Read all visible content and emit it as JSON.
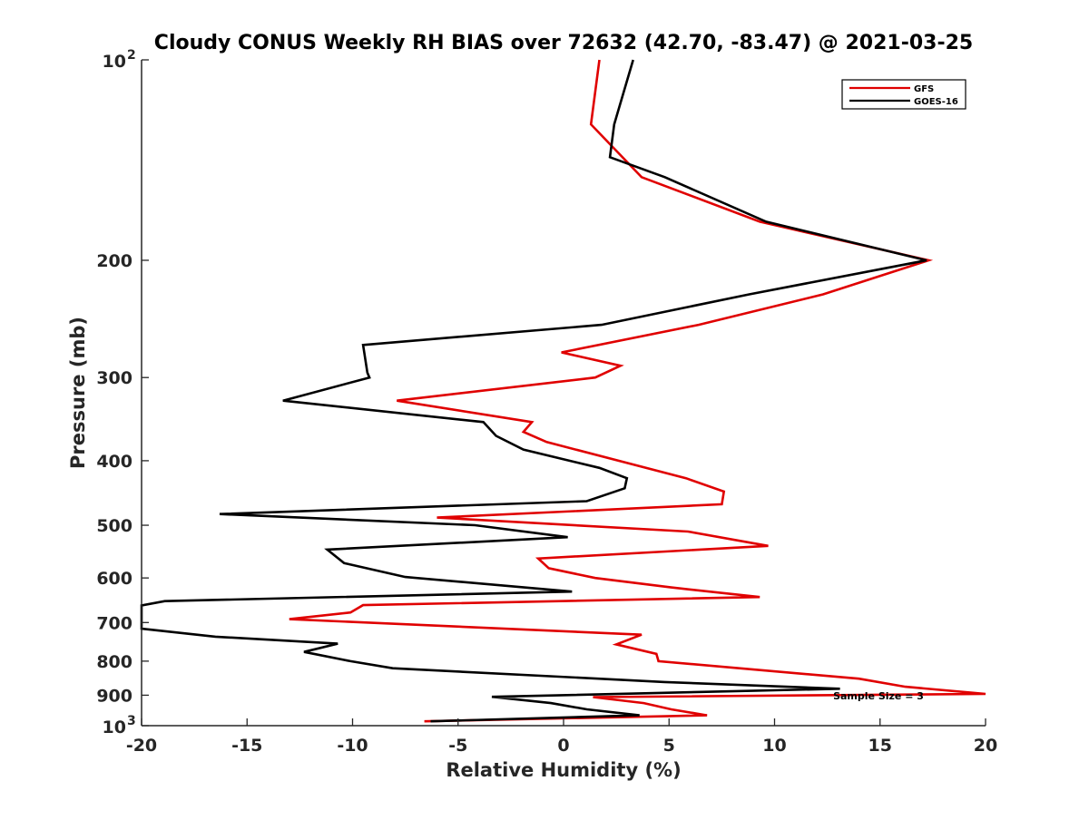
{
  "chart_data": {
    "type": "line",
    "title": "Cloudy CONUS Weekly RH BIAS over 72632 (42.70, -83.47) @ 2021-03-25",
    "xlabel": "Relative Humidity (%)",
    "ylabel": "Pressure (mb)",
    "xlim": [
      -20,
      20
    ],
    "ylim": [
      100,
      1000
    ],
    "y_scale": "log",
    "y_reversed": true,
    "x_ticks": [
      "-20",
      "-15",
      "-10",
      "-5",
      "0",
      "5",
      "10",
      "15",
      "20"
    ],
    "y_ticks": [
      {
        "value": 100,
        "base": "10",
        "exp": "2"
      },
      {
        "value": 200,
        "label": "200"
      },
      {
        "value": 300,
        "label": "300"
      },
      {
        "value": 400,
        "label": "400"
      },
      {
        "value": 500,
        "label": "500"
      },
      {
        "value": 600,
        "label": "600"
      },
      {
        "value": 700,
        "label": "700"
      },
      {
        "value": 800,
        "label": "800"
      },
      {
        "value": 900,
        "label": "900"
      },
      {
        "value": 1000,
        "base": "10",
        "exp": "3"
      }
    ],
    "legend_position": "top-right",
    "annotation": "Sample Size = 3",
    "series": [
      {
        "name": "GFS",
        "color": "#e00000",
        "points": [
          [
            1.7,
            100
          ],
          [
            1.3,
            125
          ],
          [
            3.7,
            150
          ],
          [
            9.3,
            175
          ],
          [
            17.3,
            200
          ],
          [
            12.3,
            225
          ],
          [
            6.4,
            250
          ],
          [
            -0.1,
            275
          ],
          [
            2.7,
            288
          ],
          [
            1.5,
            300
          ],
          [
            -7.9,
            325
          ],
          [
            -1.5,
            350
          ],
          [
            -1.9,
            362
          ],
          [
            -0.8,
            375
          ],
          [
            5.8,
            425
          ],
          [
            7.6,
            445
          ],
          [
            7.5,
            465
          ],
          [
            -6.0,
            487
          ],
          [
            5.9,
            511
          ],
          [
            9.7,
            537
          ],
          [
            -1.2,
            561
          ],
          [
            -0.7,
            580
          ],
          [
            1.5,
            600
          ],
          [
            5.1,
            620
          ],
          [
            9.3,
            641
          ],
          [
            -9.5,
            659
          ],
          [
            -10.1,
            676
          ],
          [
            -13.0,
            692
          ],
          [
            3.7,
            730
          ],
          [
            2.5,
            755
          ],
          [
            4.4,
            780
          ],
          [
            4.5,
            800
          ],
          [
            14.0,
            850
          ],
          [
            16.2,
            874
          ],
          [
            20.0,
            896
          ],
          [
            1.4,
            906
          ],
          [
            3.8,
            925
          ],
          [
            5.1,
            945
          ],
          [
            6.8,
            965
          ],
          [
            -6.6,
            985
          ]
        ]
      },
      {
        "name": "GOES-16",
        "color": "#000000",
        "points": [
          [
            3.3,
            100
          ],
          [
            2.4,
            125
          ],
          [
            2.2,
            140
          ],
          [
            4.8,
            150
          ],
          [
            9.6,
            175
          ],
          [
            17.2,
            200
          ],
          [
            8.8,
            225
          ],
          [
            1.8,
            250
          ],
          [
            -9.5,
            268
          ],
          [
            -9.3,
            295
          ],
          [
            -9.2,
            300
          ],
          [
            -13.3,
            325
          ],
          [
            -3.8,
            350
          ],
          [
            -3.2,
            367
          ],
          [
            -1.9,
            385
          ],
          [
            1.7,
            410
          ],
          [
            3.0,
            425
          ],
          [
            2.9,
            440
          ],
          [
            1.1,
            460
          ],
          [
            -16.3,
            481
          ],
          [
            -4.2,
            500
          ],
          [
            0.2,
            521
          ],
          [
            -11.2,
            544
          ],
          [
            -10.4,
            570
          ],
          [
            -7.5,
            598
          ],
          [
            0.4,
            629
          ],
          [
            -18.9,
            650
          ],
          [
            -20.0,
            660
          ],
          [
            -20.0,
            715
          ],
          [
            -16.5,
            735
          ],
          [
            -10.7,
            753
          ],
          [
            -12.3,
            775
          ],
          [
            -10.1,
            800
          ],
          [
            -8.1,
            820
          ],
          [
            4.8,
            860
          ],
          [
            13.1,
            880
          ],
          [
            -3.4,
            905
          ],
          [
            -0.6,
            925
          ],
          [
            1.1,
            945
          ],
          [
            3.6,
            965
          ],
          [
            -6.3,
            985
          ]
        ]
      }
    ]
  }
}
